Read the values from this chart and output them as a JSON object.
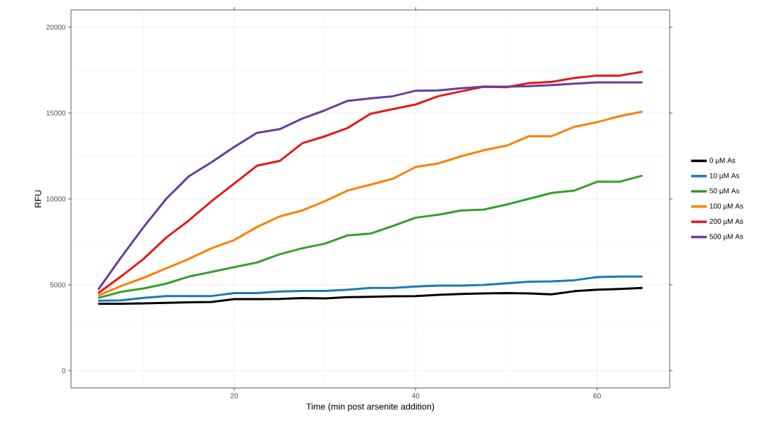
{
  "chart_data": {
    "type": "line",
    "xlabel": "Time (min post arsenite addition)",
    "ylabel": "RFU",
    "xlim": [
      2,
      68
    ],
    "ylim": [
      -1000,
      21000
    ],
    "xticks": [
      20,
      40,
      60
    ],
    "yticks": [
      0,
      5000,
      10000,
      15000,
      20000
    ],
    "grid": true,
    "legend": "right",
    "x": [
      5,
      7.5,
      10,
      12.5,
      15,
      17.5,
      20,
      22.5,
      25,
      27.5,
      30,
      32.5,
      35,
      37.5,
      40,
      42.5,
      45,
      47.5,
      50,
      52.5,
      55,
      57.5,
      60,
      62.5,
      65
    ],
    "series": [
      {
        "name": "0 µM As",
        "color": "#000000",
        "values": [
          3900,
          3900,
          3920,
          3950,
          3980,
          4000,
          4170,
          4170,
          4180,
          4230,
          4210,
          4280,
          4300,
          4330,
          4350,
          4420,
          4470,
          4500,
          4520,
          4500,
          4450,
          4630,
          4720,
          4760,
          4820
        ]
      },
      {
        "name": "10 µM As",
        "color": "#1f78b4",
        "values": [
          4080,
          4100,
          4240,
          4350,
          4350,
          4350,
          4520,
          4520,
          4610,
          4650,
          4650,
          4720,
          4820,
          4820,
          4900,
          4960,
          4960,
          5000,
          5090,
          5180,
          5200,
          5270,
          5450,
          5480,
          5480
        ]
      },
      {
        "name": "50 µM As",
        "color": "#33a02c",
        "values": [
          4240,
          4590,
          4790,
          5070,
          5480,
          5750,
          6030,
          6300,
          6780,
          7130,
          7400,
          7880,
          7980,
          8430,
          8910,
          9080,
          9330,
          9380,
          9670,
          10010,
          10350,
          10490,
          11000,
          11000,
          11360
        ]
      },
      {
        "name": "100 µM As",
        "color": "#ff7f00",
        "values": [
          4380,
          4930,
          5410,
          5960,
          6510,
          7130,
          7610,
          8360,
          8980,
          9330,
          9870,
          10490,
          10830,
          11180,
          11860,
          12070,
          12480,
          12830,
          13100,
          13650,
          13650,
          14200,
          14470,
          14820,
          15090
        ]
      },
      {
        "name": "200 µM As",
        "color": "#e31a1c",
        "values": [
          4520,
          5480,
          6510,
          7750,
          8750,
          9870,
          10900,
          11930,
          12210,
          13240,
          13650,
          14130,
          14950,
          15230,
          15500,
          15980,
          16260,
          16530,
          16500,
          16740,
          16810,
          17040,
          17180,
          17180,
          17400
        ]
      },
      {
        "name": "500 µM As",
        "color": "#6a3d9a",
        "values": [
          4720,
          6580,
          8360,
          10010,
          11320,
          12140,
          13030,
          13850,
          14060,
          14680,
          15160,
          15710,
          15850,
          15980,
          16300,
          16320,
          16440,
          16530,
          16530,
          16560,
          16630,
          16710,
          16780,
          16780,
          16780
        ]
      }
    ]
  }
}
